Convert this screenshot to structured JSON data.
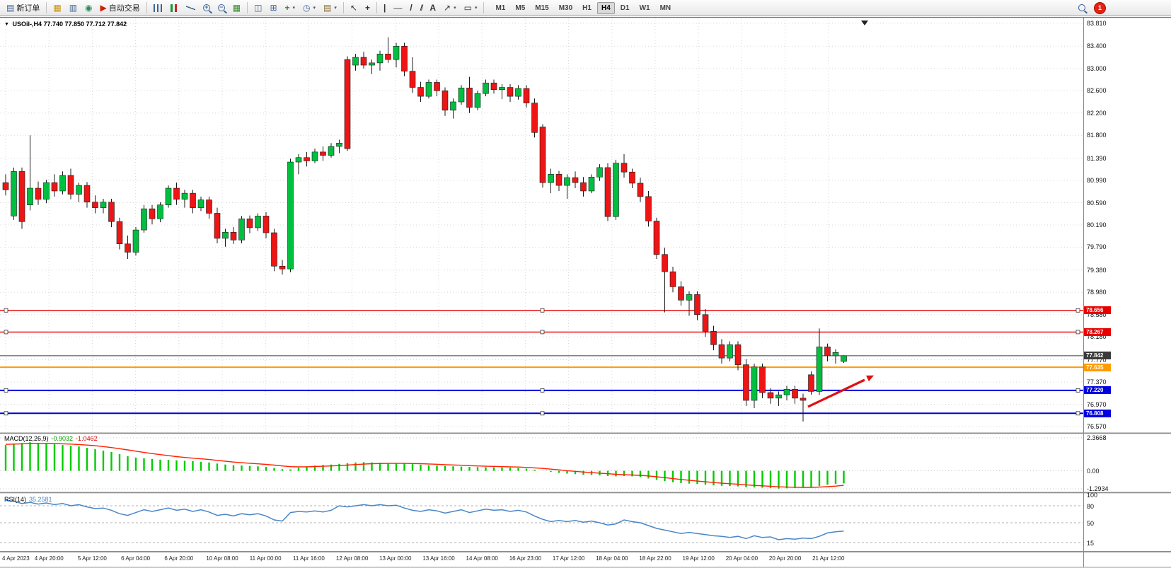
{
  "toolbar": {
    "new_order_label": "新订单",
    "auto_trading_label": "自动交易",
    "text_tool_label": "A",
    "timeframes": [
      "M1",
      "M5",
      "M15",
      "M30",
      "H1",
      "H4",
      "D1",
      "W1",
      "MN"
    ],
    "active_timeframe": "H4",
    "notification_count": "1"
  },
  "icons": {
    "new_order": "▤",
    "charts_gold": "▦",
    "market_watch": "▥",
    "navigator": "◉",
    "auto_trading": "▶",
    "grid": "▦",
    "tile_windows": "◫",
    "cascade_windows": "⊞",
    "indicators_plus": "+",
    "periods_clock": "◷",
    "templates": "▤",
    "cursor": "↖",
    "crosshair": "+",
    "vertical_line": "|",
    "horizontal_line": "—",
    "trendline": "/",
    "channel": "//",
    "arrows": "↗",
    "shapes": "▭",
    "caret": "▾",
    "zoom_in_sign": "+",
    "zoom_out_sign": "−",
    "title_marker": "▼"
  },
  "chart_header": {
    "symbol_period": "USOil-,H4",
    "ohlc": "77.740 77.850 77.712 77.842"
  },
  "price_axis": {
    "labels": [
      "83.810",
      "83.400",
      "83.000",
      "82.600",
      "82.200",
      "81.800",
      "81.390",
      "80.990",
      "80.590",
      "80.190",
      "79.790",
      "79.380",
      "78.980",
      "78.580",
      "78.180",
      "77.770",
      "77.370",
      "76.970",
      "76.570"
    ]
  },
  "price_levels": [
    {
      "label": "78.656",
      "value": 78.656,
      "color": "#e60000",
      "width": 1.4,
      "handles": true
    },
    {
      "label": "78.267",
      "value": 78.267,
      "color": "#e60000",
      "width": 1.4,
      "handles": true
    },
    {
      "label": "77.842",
      "value": 77.842,
      "color": "#3a3a3a",
      "width": 1,
      "handles": false
    },
    {
      "label": "77.635",
      "value": 77.635,
      "color": "#ff9c00",
      "width": 2,
      "handles": false
    },
    {
      "label": "77.220",
      "value": 77.22,
      "color": "#0000dd",
      "width": 2,
      "handles": true
    },
    {
      "label": "76.808",
      "value": 76.808,
      "color": "#0000dd",
      "width": 2,
      "handles": true
    }
  ],
  "macd_panel": {
    "label": "MACD(12,26,9)",
    "value_main": "-0.9032",
    "value_signal": "-1.0462",
    "axis_labels": [
      "2.3668",
      "0.00",
      "-1.2934"
    ]
  },
  "rsi_panel": {
    "label": "RSI(14)",
    "value": "35.2581",
    "axis_labels": [
      "100",
      "80",
      "50",
      "15"
    ],
    "levels": [
      80,
      50,
      15
    ]
  },
  "time_axis": {
    "labels": [
      "4 Apr 2023",
      "4 Apr 20:00",
      "5 Apr 12:00",
      "6 Apr 04:00",
      "6 Apr 20:00",
      "10 Apr 08:00",
      "11 Apr 00:00",
      "11 Apr 16:00",
      "12 Apr 08:00",
      "13 Apr 00:00",
      "13 Apr 16:00",
      "14 Apr 08:00",
      "16 Apr 23:00",
      "17 Apr 12:00",
      "18 Apr 04:00",
      "18 Apr 22:00",
      "19 Apr 12:00",
      "20 Apr 04:00",
      "20 Apr 20:00",
      "21 Apr 12:00"
    ]
  },
  "annotations": {
    "trend_arrow": {
      "color": "#e01010",
      "direction": "up-right"
    }
  },
  "chart_data": {
    "type": "candlestick",
    "title": "USOil-,H4",
    "ylim": [
      76.57,
      83.81
    ],
    "colors": {
      "up": "#00bf40",
      "down": "#ed1515",
      "macd_hist": "#00cc00",
      "macd_signal": "#ff2000",
      "rsi_line": "#4a86c8",
      "grid": "#d8d8d8"
    },
    "candles": [
      [
        80.95,
        81.1,
        80.72,
        80.82
      ],
      [
        80.35,
        81.22,
        80.28,
        81.15
      ],
      [
        81.15,
        81.22,
        80.12,
        80.25
      ],
      [
        80.55,
        81.8,
        80.45,
        80.85
      ],
      [
        80.85,
        80.97,
        80.55,
        80.65
      ],
      [
        80.65,
        81.0,
        80.58,
        80.95
      ],
      [
        80.95,
        81.1,
        80.7,
        80.8
      ],
      [
        80.8,
        81.15,
        80.74,
        81.08
      ],
      [
        81.08,
        81.2,
        80.65,
        80.74
      ],
      [
        80.74,
        80.95,
        80.6,
        80.9
      ],
      [
        80.9,
        80.96,
        80.5,
        80.6
      ],
      [
        80.6,
        80.72,
        80.4,
        80.5
      ],
      [
        80.5,
        80.66,
        80.4,
        80.6
      ],
      [
        80.6,
        80.66,
        80.15,
        80.25
      ],
      [
        80.25,
        80.32,
        79.75,
        79.85
      ],
      [
        79.85,
        80.0,
        79.58,
        79.7
      ],
      [
        79.7,
        80.15,
        79.64,
        80.1
      ],
      [
        80.1,
        80.55,
        80.05,
        80.48
      ],
      [
        80.48,
        80.55,
        80.2,
        80.3
      ],
      [
        80.3,
        80.6,
        80.24,
        80.55
      ],
      [
        80.55,
        80.9,
        80.5,
        80.85
      ],
      [
        80.85,
        80.95,
        80.55,
        80.65
      ],
      [
        80.65,
        80.82,
        80.5,
        80.76
      ],
      [
        80.76,
        80.82,
        80.4,
        80.5
      ],
      [
        80.5,
        80.7,
        80.44,
        80.64
      ],
      [
        80.64,
        80.7,
        80.3,
        80.4
      ],
      [
        80.4,
        80.5,
        79.86,
        79.95
      ],
      [
        79.95,
        80.12,
        79.8,
        80.06
      ],
      [
        80.06,
        80.15,
        79.85,
        79.92
      ],
      [
        79.92,
        80.35,
        79.86,
        80.3
      ],
      [
        80.3,
        80.36,
        80.04,
        80.14
      ],
      [
        80.14,
        80.4,
        80.08,
        80.35
      ],
      [
        80.35,
        80.42,
        79.95,
        80.05
      ],
      [
        80.05,
        80.12,
        79.36,
        79.45
      ],
      [
        79.45,
        79.56,
        79.3,
        79.4
      ],
      [
        79.4,
        81.38,
        79.34,
        81.32
      ],
      [
        81.32,
        81.46,
        81.1,
        81.4
      ],
      [
        81.4,
        81.5,
        81.24,
        81.34
      ],
      [
        81.34,
        81.56,
        81.3,
        81.5
      ],
      [
        81.5,
        81.6,
        81.34,
        81.44
      ],
      [
        81.44,
        81.66,
        81.4,
        81.6
      ],
      [
        81.6,
        81.72,
        81.48,
        81.66
      ],
      [
        83.16,
        83.22,
        81.52,
        81.56
      ],
      [
        83.06,
        83.26,
        82.96,
        83.2
      ],
      [
        83.2,
        83.3,
        83.0,
        83.06
      ],
      [
        83.06,
        83.16,
        82.9,
        83.1
      ],
      [
        83.1,
        83.32,
        82.96,
        83.26
      ],
      [
        83.26,
        83.56,
        83.1,
        83.16
      ],
      [
        83.16,
        83.46,
        83.02,
        83.4
      ],
      [
        83.4,
        83.46,
        82.86,
        82.95
      ],
      [
        82.95,
        83.2,
        82.56,
        82.66
      ],
      [
        82.66,
        82.76,
        82.4,
        82.5
      ],
      [
        82.5,
        82.8,
        82.46,
        82.75
      ],
      [
        82.75,
        82.8,
        82.5,
        82.6
      ],
      [
        82.6,
        82.66,
        82.15,
        82.25
      ],
      [
        82.25,
        82.46,
        82.1,
        82.4
      ],
      [
        82.4,
        82.7,
        82.35,
        82.65
      ],
      [
        82.65,
        82.85,
        82.2,
        82.3
      ],
      [
        82.3,
        82.6,
        82.25,
        82.55
      ],
      [
        82.55,
        82.8,
        82.5,
        82.74
      ],
      [
        82.74,
        82.8,
        82.55,
        82.62
      ],
      [
        82.62,
        82.72,
        82.45,
        82.66
      ],
      [
        82.66,
        82.72,
        82.4,
        82.5
      ],
      [
        82.5,
        82.7,
        82.44,
        82.64
      ],
      [
        82.64,
        82.7,
        82.3,
        82.38
      ],
      [
        82.38,
        82.46,
        81.76,
        81.85
      ],
      [
        81.95,
        82.0,
        80.86,
        80.95
      ],
      [
        80.95,
        81.2,
        80.76,
        81.1
      ],
      [
        81.1,
        81.16,
        80.8,
        80.9
      ],
      [
        80.9,
        81.1,
        80.66,
        81.04
      ],
      [
        81.04,
        81.15,
        80.85,
        80.95
      ],
      [
        80.95,
        81.05,
        80.7,
        80.8
      ],
      [
        80.8,
        81.1,
        80.76,
        81.05
      ],
      [
        81.05,
        81.28,
        80.98,
        81.22
      ],
      [
        81.22,
        81.3,
        80.26,
        80.34
      ],
      [
        80.34,
        81.36,
        80.28,
        81.3
      ],
      [
        81.3,
        81.46,
        81.04,
        81.14
      ],
      [
        81.14,
        81.2,
        80.85,
        80.94
      ],
      [
        80.94,
        81.04,
        80.6,
        80.7
      ],
      [
        80.7,
        80.8,
        80.16,
        80.26
      ],
      [
        80.26,
        80.32,
        79.58,
        79.66
      ],
      [
        79.66,
        79.78,
        78.62,
        79.35
      ],
      [
        79.35,
        79.44,
        78.98,
        79.08
      ],
      [
        79.08,
        79.18,
        78.74,
        78.84
      ],
      [
        78.84,
        79.0,
        78.56,
        78.94
      ],
      [
        78.94,
        79.0,
        78.48,
        78.58
      ],
      [
        78.58,
        78.68,
        78.18,
        78.28
      ],
      [
        78.28,
        78.38,
        77.94,
        78.04
      ],
      [
        78.04,
        78.14,
        77.7,
        77.8
      ],
      [
        77.8,
        78.1,
        77.74,
        78.04
      ],
      [
        78.04,
        78.1,
        77.58,
        77.68
      ],
      [
        77.68,
        77.78,
        76.94,
        77.04
      ],
      [
        77.04,
        77.7,
        76.9,
        77.64
      ],
      [
        77.64,
        77.7,
        77.08,
        77.18
      ],
      [
        77.18,
        77.26,
        76.98,
        77.08
      ],
      [
        77.08,
        77.2,
        76.94,
        77.14
      ],
      [
        77.14,
        77.3,
        77.04,
        77.24
      ],
      [
        77.24,
        77.3,
        76.98,
        77.08
      ],
      [
        77.08,
        77.16,
        76.66,
        77.04
      ],
      [
        77.5,
        77.56,
        77.14,
        77.2
      ],
      [
        77.2,
        78.33,
        77.14,
        78.0
      ],
      [
        78.0,
        78.06,
        77.74,
        77.84
      ],
      [
        77.84,
        77.96,
        77.7,
        77.9
      ],
      [
        77.74,
        77.85,
        77.712,
        77.842
      ]
    ],
    "indicators": [
      {
        "name": "MACD",
        "params": "12,26,9",
        "current_main": -0.9032,
        "current_signal": -1.0462,
        "range": [
          -1.2934,
          2.3668
        ],
        "histogram": [
          1.85,
          1.95,
          2.0,
          2.05,
          2.0,
          1.95,
          1.9,
          1.85,
          1.8,
          1.75,
          1.65,
          1.55,
          1.45,
          1.35,
          1.2,
          1.05,
          0.95,
          0.9,
          0.85,
          0.8,
          0.78,
          0.75,
          0.72,
          0.7,
          0.65,
          0.6,
          0.52,
          0.45,
          0.4,
          0.38,
          0.35,
          0.32,
          0.28,
          0.2,
          0.12,
          0.1,
          0.22,
          0.32,
          0.38,
          0.42,
          0.45,
          0.5,
          0.55,
          0.6,
          0.62,
          0.6,
          0.58,
          0.56,
          0.55,
          0.52,
          0.48,
          0.44,
          0.4,
          0.38,
          0.35,
          0.32,
          0.3,
          0.28,
          0.27,
          0.26,
          0.25,
          0.24,
          0.22,
          0.2,
          0.15,
          0.08,
          0.0,
          -0.08,
          -0.15,
          -0.2,
          -0.24,
          -0.28,
          -0.3,
          -0.33,
          -0.38,
          -0.4,
          -0.38,
          -0.4,
          -0.45,
          -0.55,
          -0.65,
          -0.75,
          -0.82,
          -0.88,
          -0.92,
          -0.95,
          -1.0,
          -1.05,
          -1.08,
          -1.1,
          -1.12,
          -1.18,
          -1.2,
          -1.22,
          -1.25,
          -1.28,
          -1.26,
          -1.24,
          -1.22,
          -1.2,
          -1.1,
          -1.0,
          -0.95,
          -0.9032
        ],
        "signal": [
          1.9,
          1.92,
          1.94,
          1.96,
          1.97,
          1.97,
          1.96,
          1.94,
          1.92,
          1.89,
          1.85,
          1.8,
          1.74,
          1.67,
          1.59,
          1.5,
          1.41,
          1.32,
          1.24,
          1.16,
          1.09,
          1.02,
          0.96,
          0.91,
          0.86,
          0.81,
          0.75,
          0.69,
          0.63,
          0.58,
          0.54,
          0.5,
          0.46,
          0.41,
          0.35,
          0.3,
          0.28,
          0.29,
          0.31,
          0.33,
          0.35,
          0.38,
          0.41,
          0.45,
          0.48,
          0.51,
          0.52,
          0.53,
          0.53,
          0.53,
          0.52,
          0.51,
          0.49,
          0.47,
          0.44,
          0.42,
          0.4,
          0.37,
          0.35,
          0.33,
          0.32,
          0.3,
          0.28,
          0.27,
          0.24,
          0.21,
          0.17,
          0.12,
          0.07,
          0.01,
          -0.04,
          -0.09,
          -0.13,
          -0.17,
          -0.21,
          -0.25,
          -0.28,
          -0.3,
          -0.33,
          -0.37,
          -0.43,
          -0.49,
          -0.56,
          -0.62,
          -0.68,
          -0.74,
          -0.79,
          -0.84,
          -0.89,
          -0.93,
          -0.97,
          -1.01,
          -1.05,
          -1.08,
          -1.11,
          -1.15,
          -1.17,
          -1.18,
          -1.19,
          -1.19,
          -1.17,
          -1.14,
          -1.1,
          -1.0462
        ]
      },
      {
        "name": "RSI",
        "params": "14",
        "current": 35.2581,
        "range": [
          0,
          100
        ],
        "levels": [
          80,
          50,
          15
        ],
        "values": [
          90,
          88,
          84,
          86,
          83,
          85,
          82,
          84,
          80,
          82,
          78,
          75,
          76,
          72,
          66,
          63,
          68,
          73,
          70,
          73,
          76,
          72,
          74,
          70,
          73,
          69,
          63,
          65,
          62,
          66,
          64,
          66,
          62,
          55,
          53,
          68,
          70,
          69,
          71,
          69,
          72,
          80,
          78,
          80,
          82,
          80,
          82,
          80,
          81,
          76,
          72,
          70,
          73,
          71,
          67,
          70,
          73,
          68,
          71,
          74,
          72,
          73,
          70,
          72,
          69,
          62,
          56,
          52,
          54,
          52,
          54,
          51,
          53,
          50,
          46,
          48,
          55,
          52,
          50,
          45,
          40,
          37,
          34,
          31,
          33,
          31,
          29,
          27,
          26,
          24,
          26,
          22,
          27,
          24,
          25,
          20,
          22,
          21,
          23,
          22,
          26,
          32,
          34,
          35.26
        ]
      }
    ]
  }
}
